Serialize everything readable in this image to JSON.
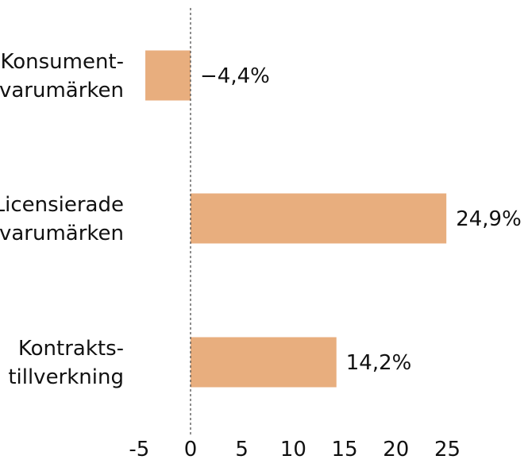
{
  "chart_data": {
    "type": "bar",
    "orientation": "horizontal",
    "categories": [
      [
        "Konsument-",
        "varumärken"
      ],
      [
        "Licensierade",
        "varumärken"
      ],
      [
        "Kontrakts-",
        "tillverkning"
      ]
    ],
    "values": [
      -4.4,
      24.9,
      14.2
    ],
    "value_labels": [
      "−4,4%",
      "24,9%",
      "14,2%"
    ],
    "xlim": [
      -5,
      25
    ],
    "xticks": [
      -5,
      0,
      5,
      10,
      15,
      20,
      25
    ],
    "xtick_labels": [
      "-5",
      "0",
      "5",
      "10",
      "15",
      "20",
      "25"
    ],
    "title": "",
    "xlabel": "",
    "ylabel": "",
    "grid": false,
    "zero_line": "dashed",
    "bar_color": "#E8AE7E"
  }
}
